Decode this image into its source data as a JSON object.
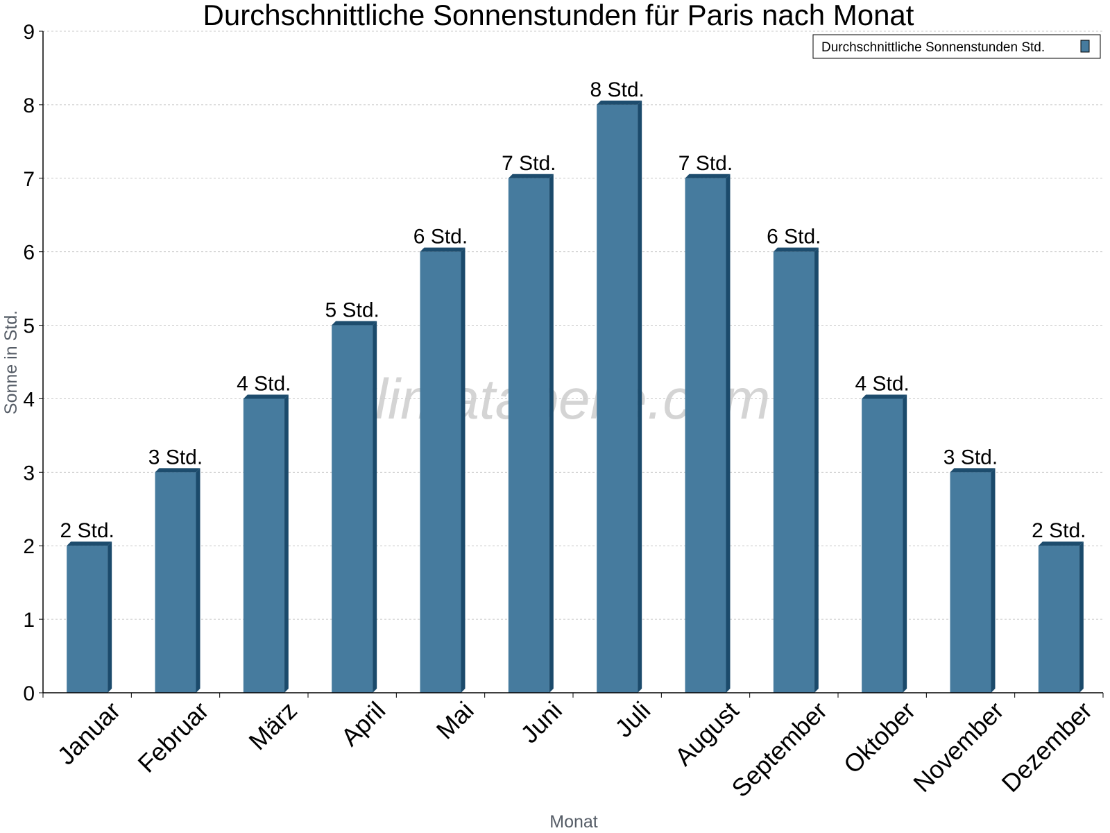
{
  "chart_data": {
    "type": "bar",
    "title": "Durchschnittliche Sonnenstunden für Paris nach Monat",
    "xlabel": "Monat",
    "ylabel": "Sonne in Std.",
    "categories": [
      "Januar",
      "Februar",
      "März",
      "April",
      "Mai",
      "Juni",
      "Juli",
      "August",
      "September",
      "Oktober",
      "November",
      "Dezember"
    ],
    "series": [
      {
        "name": "Durchschnittliche Sonnenstunden Std.",
        "values": [
          2,
          3,
          4,
          5,
          6,
          7,
          8,
          7,
          6,
          4,
          3,
          2
        ],
        "data_labels": [
          "2 Std.",
          "3 Std.",
          "4 Std.",
          "5 Std.",
          "6 Std.",
          "7 Std.",
          "8 Std.",
          "7 Std.",
          "6 Std.",
          "4 Std.",
          "3 Std.",
          "2 Std."
        ]
      }
    ],
    "ylim": [
      0,
      9
    ],
    "yticks": [
      0,
      1,
      2,
      3,
      4,
      5,
      6,
      7,
      8,
      9
    ],
    "grid": true,
    "legend_position": "top-right",
    "colors": {
      "bar": "#467b9e",
      "bar_top": "#1d4c6d",
      "bar_side": "#1b4a6b",
      "grid": "#c8c8c8",
      "axis": "#000000"
    }
  },
  "watermark": "klimatabelle.com"
}
